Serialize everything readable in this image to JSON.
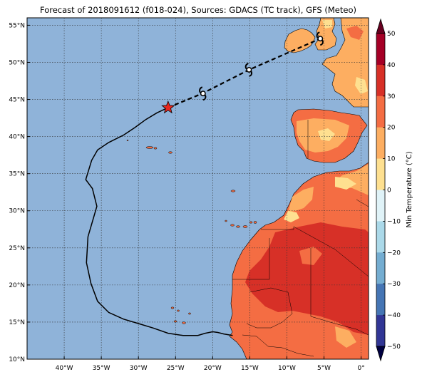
{
  "chart_data": {
    "type": "map",
    "title": "Forecast of 2018091612 (f018-024), Sources: GDACS (TC track), GFS (Meteo)",
    "lon_range": [
      -45,
      1
    ],
    "lat_range": [
      10,
      56
    ],
    "x_ticks": [
      {
        "lon": -40,
        "label": "40°W"
      },
      {
        "lon": -35,
        "label": "35°W"
      },
      {
        "lon": -30,
        "label": "30°W"
      },
      {
        "lon": -25,
        "label": "25°W"
      },
      {
        "lon": -20,
        "label": "20°W"
      },
      {
        "lon": -15,
        "label": "15°W"
      },
      {
        "lon": -10,
        "label": "10°W"
      },
      {
        "lon": -5,
        "label": "5°W"
      },
      {
        "lon": 0,
        "label": "0°"
      }
    ],
    "y_ticks": [
      {
        "lat": 55,
        "label": "55°N"
      },
      {
        "lat": 50,
        "label": "50°N"
      },
      {
        "lat": 45,
        "label": "45°N"
      },
      {
        "lat": 40,
        "label": "40°N"
      },
      {
        "lat": 35,
        "label": "35°N"
      },
      {
        "lat": 30,
        "label": "30°N"
      },
      {
        "lat": 25,
        "label": "25°N"
      },
      {
        "lat": 20,
        "label": "20°N"
      },
      {
        "lat": 15,
        "label": "15°N"
      },
      {
        "lat": 10,
        "label": "10°N"
      }
    ],
    "grid": true,
    "ocean_color": "#8fb3d9",
    "past_track": [
      [
        -17.3,
        13.2
      ],
      [
        -18.5,
        13.4
      ],
      [
        -19.3,
        13.6
      ],
      [
        -20.0,
        13.7
      ],
      [
        -21.0,
        13.5
      ],
      [
        -22.0,
        13.2
      ],
      [
        -24.0,
        13.2
      ],
      [
        -26.0,
        13.5
      ],
      [
        -28.0,
        14.2
      ],
      [
        -30.0,
        14.8
      ],
      [
        -32.0,
        15.4
      ],
      [
        -34.0,
        16.3
      ],
      [
        -35.5,
        17.8
      ],
      [
        -36.4,
        20.2
      ],
      [
        -37.0,
        23.0
      ],
      [
        -36.8,
        26.5
      ],
      [
        -35.6,
        30.6
      ],
      [
        -36.2,
        33.0
      ],
      [
        -37.1,
        34.2
      ],
      [
        -36.3,
        36.8
      ],
      [
        -35.5,
        38.2
      ],
      [
        -34.0,
        39.2
      ],
      [
        -32.0,
        40.2
      ],
      [
        -30.5,
        41.2
      ],
      [
        -29.0,
        42.3
      ],
      [
        -27.5,
        43.2
      ],
      [
        -26.0,
        43.9
      ]
    ],
    "forecast_track": [
      [
        -26.0,
        43.9
      ],
      [
        -21.4,
        45.8
      ],
      [
        -15.1,
        49.0
      ],
      [
        -5.5,
        53.2
      ]
    ],
    "current_position": {
      "lon": -26.0,
      "lat": 43.9,
      "marker": "star",
      "color": "#e8261e"
    },
    "forecast_symbols": [
      {
        "lon": -21.3,
        "lat": 45.8,
        "symbol": "cyclone-icon"
      },
      {
        "lon": -15.1,
        "lat": 49.0,
        "symbol": "cyclone-icon"
      },
      {
        "lon": -5.5,
        "lat": 53.2,
        "symbol": "cyclone-icon"
      }
    ],
    "colorbar": {
      "label": "Min Temperature (°C)",
      "range": [
        -50,
        50
      ],
      "ticks": [
        50,
        40,
        30,
        20,
        10,
        0,
        -10,
        -20,
        -30,
        -40,
        -50
      ],
      "tick_labels": [
        "50",
        "40",
        "30",
        "20",
        "10",
        "0",
        "−10",
        "−20",
        "−30",
        "−40",
        "−50"
      ],
      "colors_top_down": [
        "#a50026",
        "#d73027",
        "#f46d43",
        "#fdae61",
        "#fee090",
        "#e0f3f8",
        "#abd9e9",
        "#74add1",
        "#4575b4",
        "#313695"
      ]
    },
    "land_colors": {
      "warm": "#fdae61",
      "mild": "#fee090",
      "hot": "#f46d43",
      "very_hot": "#d73027"
    }
  }
}
